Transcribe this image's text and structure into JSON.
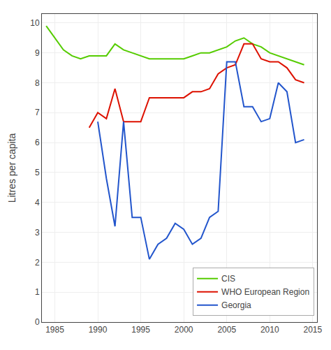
{
  "chart_data": {
    "type": "line",
    "y_label": "Litres per capita",
    "series": [
      {
        "name": "CIS",
        "color": "#55cc00",
        "x": [
          1984,
          1985,
          1986,
          1987,
          1988,
          1989,
          1990,
          1991,
          1992,
          1993,
          1994,
          1995,
          1996,
          1997,
          1998,
          1999,
          2000,
          2001,
          2002,
          2003,
          2004,
          2005,
          2006,
          2007,
          2008,
          2009,
          2010,
          2011,
          2012,
          2013,
          2014
        ],
        "values": [
          9.9,
          9.5,
          9.1,
          8.9,
          8.8,
          8.9,
          8.9,
          8.9,
          9.3,
          9.1,
          9.0,
          8.9,
          8.8,
          8.8,
          8.8,
          8.8,
          8.8,
          8.9,
          9.0,
          9.0,
          9.1,
          9.2,
          9.4,
          9.5,
          9.3,
          9.2,
          9.0,
          8.9,
          8.8,
          8.7,
          8.6
        ]
      },
      {
        "name": "WHO European Region",
        "color": "#dd1100",
        "x": [
          1989,
          1990,
          1991,
          1992,
          1993,
          1994,
          1995,
          1996,
          1997,
          1998,
          1999,
          2000,
          2001,
          2002,
          2003,
          2004,
          2005,
          2006,
          2007,
          2008,
          2009,
          2010,
          2011,
          2012,
          2013,
          2014
        ],
        "values": [
          6.5,
          7.0,
          6.8,
          7.8,
          6.7,
          6.7,
          6.7,
          7.5,
          7.5,
          7.5,
          7.5,
          7.5,
          7.7,
          7.7,
          7.8,
          8.3,
          8.5,
          8.6,
          9.3,
          9.3,
          8.8,
          8.7,
          8.7,
          8.5,
          8.1,
          8.0
        ]
      },
      {
        "name": "Georgia",
        "color": "#2255cc",
        "x": [
          1990,
          1991,
          1992,
          1993,
          1994,
          1995,
          1996,
          1997,
          1998,
          1999,
          2000,
          2001,
          2002,
          2003,
          2004,
          2005,
          2006,
          2007,
          2008,
          2009,
          2010,
          2011,
          2012,
          2013,
          2014
        ],
        "values": [
          6.7,
          4.8,
          3.2,
          6.7,
          3.5,
          3.5,
          2.1,
          2.6,
          2.8,
          3.3,
          3.1,
          2.6,
          2.8,
          3.5,
          3.7,
          8.7,
          8.7,
          7.2,
          7.2,
          6.7,
          6.8,
          8.0,
          7.7,
          6.0,
          6.1
        ]
      }
    ],
    "xlim": [
      1983.5,
      2015.5
    ],
    "xticks": [
      1985,
      1990,
      1995,
      2000,
      2005,
      2010,
      2015
    ],
    "ylim": [
      0,
      10.3
    ],
    "yticks": [
      0,
      1,
      2,
      3,
      4,
      5,
      6,
      7,
      8,
      9,
      10
    ],
    "grid": true,
    "legend": "lower right"
  }
}
